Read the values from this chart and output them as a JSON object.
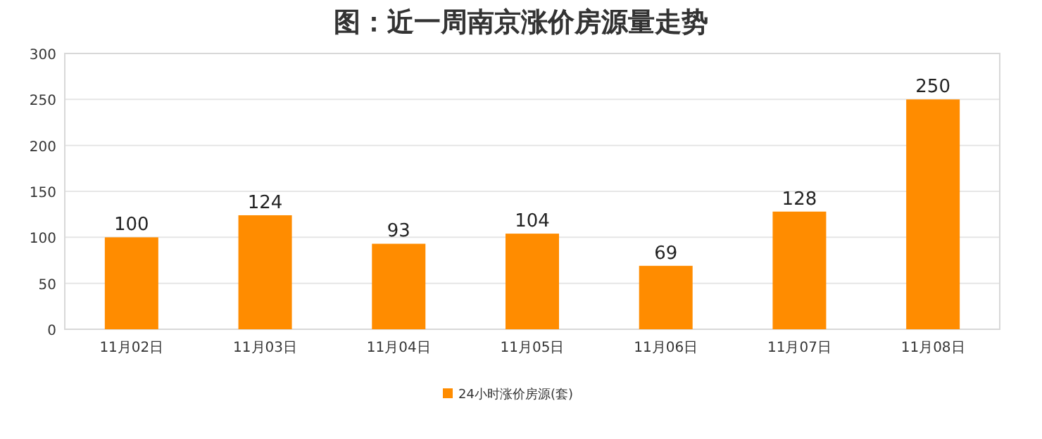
{
  "chart_data": {
    "type": "bar",
    "title": "图：近一周南京涨价房源量走势",
    "categories": [
      "11月02日",
      "11月03日",
      "11月04日",
      "11月05日",
      "11月06日",
      "11月07日",
      "11月08日"
    ],
    "series": [
      {
        "name": "24小时涨价房源(套)",
        "color": "#ff8c00",
        "values": [
          100,
          124,
          93,
          104,
          69,
          128,
          250
        ]
      }
    ],
    "ylim": [
      0,
      300
    ],
    "yticks": [
      0,
      50,
      100,
      150,
      200,
      250,
      300
    ],
    "grid": "y",
    "legend": "bottom",
    "data_labels": true
  }
}
